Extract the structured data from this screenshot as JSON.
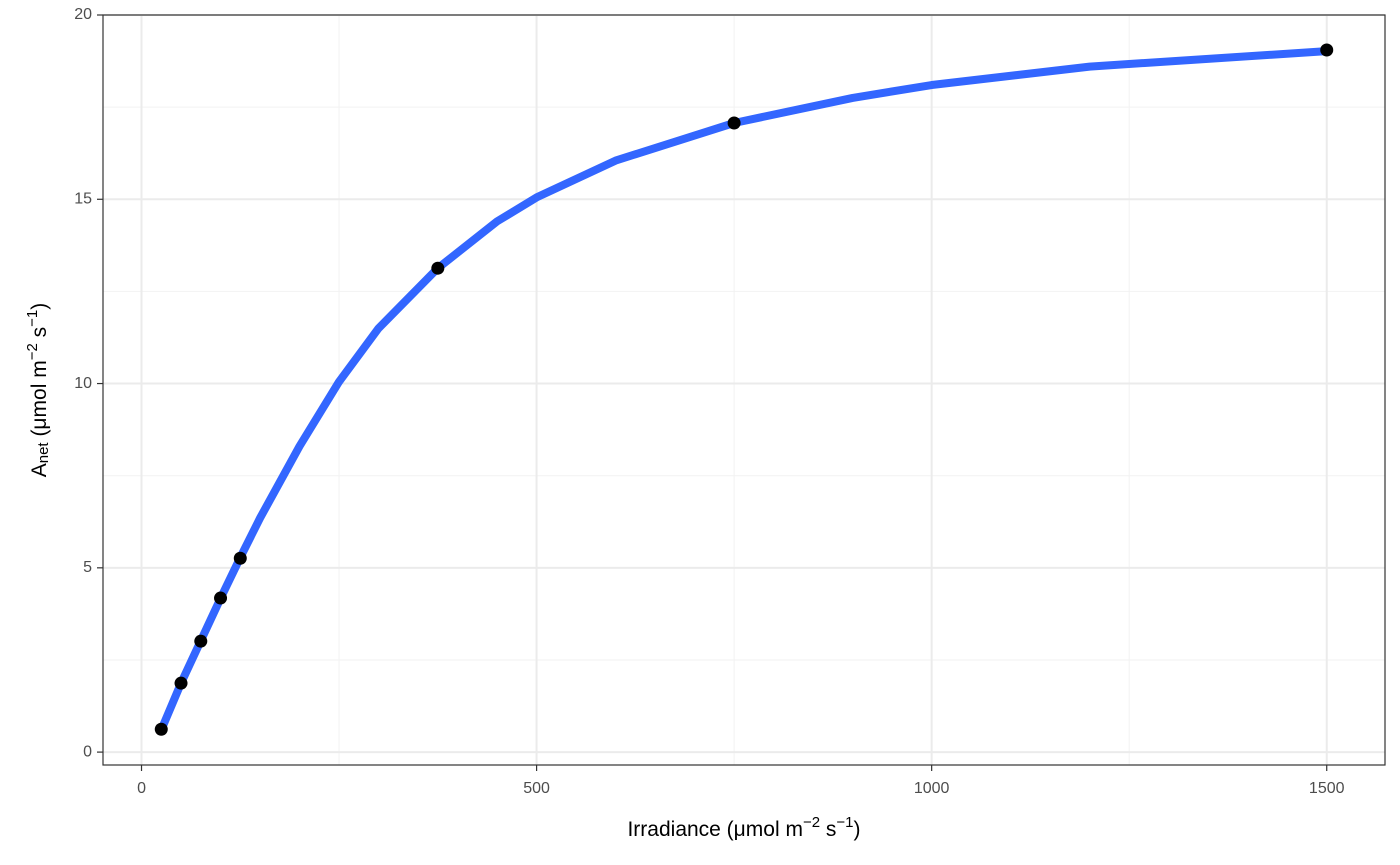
{
  "chart_data": {
    "type": "scatter",
    "x_label": [
      {
        "text": "Irradiance (μmol m"
      },
      {
        "text": "−2",
        "shift": "super"
      },
      {
        "text": " s"
      },
      {
        "text": "−1",
        "shift": "super"
      },
      {
        "text": ")"
      }
    ],
    "y_label": [
      {
        "text": "A"
      },
      {
        "text": "net",
        "shift": "sub"
      },
      {
        "text": " (μmol m"
      },
      {
        "text": "−2",
        "shift": "super"
      },
      {
        "text": " s"
      },
      {
        "text": "−1",
        "shift": "super"
      },
      {
        "text": ")"
      }
    ],
    "xlim": [
      -48.75,
      1573.75
    ],
    "ylim": [
      -0.35,
      20
    ],
    "xticks": [
      0,
      500,
      1000,
      1500
    ],
    "yticks": [
      0,
      5,
      10,
      15,
      20
    ],
    "xminor": [
      250,
      750,
      1250
    ],
    "yminor": [
      2.5,
      7.5,
      12.5,
      17.5
    ],
    "grid": true,
    "line": {
      "color": "#3366ff",
      "x": [
        25,
        50,
        75,
        100,
        125,
        150,
        200,
        250,
        300,
        375,
        450,
        500,
        600,
        750,
        900,
        1000,
        1200,
        1500
      ],
      "values": [
        0.6,
        1.87,
        3.02,
        4.17,
        5.28,
        6.35,
        8.3,
        10.05,
        11.5,
        13.13,
        14.4,
        15.05,
        16.05,
        17.07,
        17.75,
        18.1,
        18.6,
        19.02
      ]
    },
    "points": {
      "color": "#000000",
      "x": [
        25,
        50,
        75,
        100,
        125,
        375,
        750,
        1500
      ],
      "values": [
        0.62,
        1.87,
        3.01,
        4.18,
        5.26,
        13.13,
        17.07,
        19.05
      ]
    }
  }
}
